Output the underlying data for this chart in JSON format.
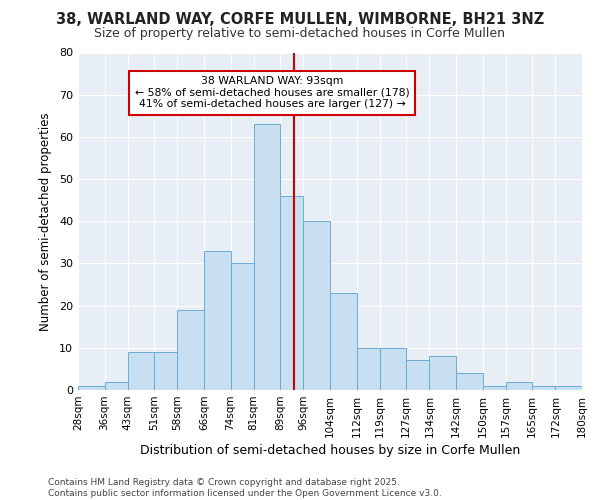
{
  "title1": "38, WARLAND WAY, CORFE MULLEN, WIMBORNE, BH21 3NZ",
  "title2": "Size of property relative to semi-detached houses in Corfe Mullen",
  "xlabel": "Distribution of semi-detached houses by size in Corfe Mullen",
  "ylabel": "Number of semi-detached properties",
  "bin_labels": [
    "28sqm",
    "36sqm",
    "43sqm",
    "51sqm",
    "58sqm",
    "66sqm",
    "74sqm",
    "81sqm",
    "89sqm",
    "96sqm",
    "104sqm",
    "112sqm",
    "119sqm",
    "127sqm",
    "134sqm",
    "142sqm",
    "150sqm",
    "157sqm",
    "165sqm",
    "172sqm",
    "180sqm"
  ],
  "bin_edges": [
    28,
    36,
    43,
    51,
    58,
    66,
    74,
    81,
    89,
    96,
    104,
    112,
    119,
    127,
    134,
    142,
    150,
    157,
    165,
    172,
    180
  ],
  "bar_heights": [
    1,
    2,
    9,
    9,
    19,
    33,
    30,
    63,
    46,
    40,
    23,
    10,
    10,
    7,
    8,
    4,
    1,
    2,
    1,
    1
  ],
  "bar_facecolor": "#c8dff2",
  "bar_edgecolor": "#6aabd6",
  "property_size": 93,
  "vline_color": "#cc0000",
  "annotation_box_color": "#cc0000",
  "annotation_title": "38 WARLAND WAY: 93sqm",
  "annotation_line1": "← 58% of semi-detached houses are smaller (178)",
  "annotation_line2": "41% of semi-detached houses are larger (127) →",
  "footer": "Contains HM Land Registry data © Crown copyright and database right 2025.\nContains public sector information licensed under the Open Government Licence v3.0.",
  "ylim": [
    0,
    80
  ],
  "yticks": [
    0,
    10,
    20,
    30,
    40,
    50,
    60,
    70,
    80
  ],
  "fig_background": "#ffffff",
  "plot_background": "#e8eef5",
  "grid_color": "#ffffff"
}
